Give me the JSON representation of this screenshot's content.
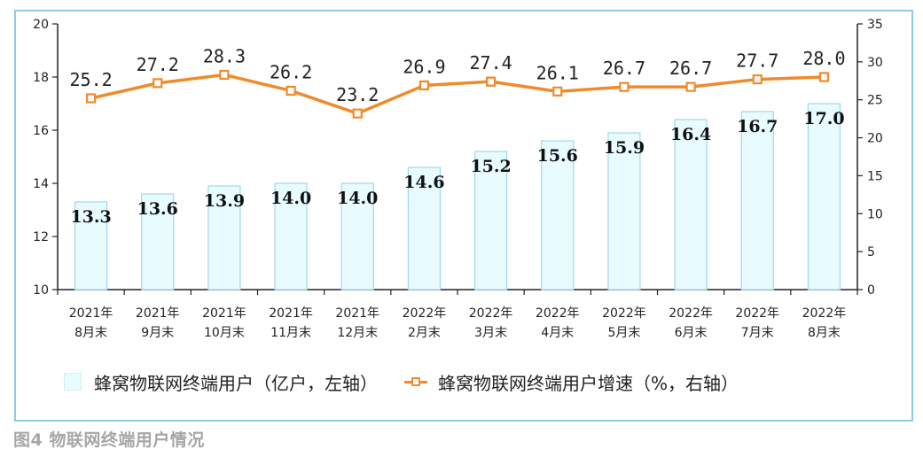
{
  "caption": "图4 物联网终端用户情况",
  "legend": {
    "bar_label": "蜂窝物联网终端用户（亿户，左轴）",
    "line_label": "蜂窝物联网终端用户增速（%，右轴）"
  },
  "colors": {
    "bar_fill": "#e8fbff",
    "bar_stroke": "#9fd8ea",
    "line": "#f08a2a",
    "frame": "#8ecbe6",
    "caption": "#a6a6a6"
  },
  "chart_data": {
    "type": "bar",
    "categories": [
      [
        "2021年",
        "8月末"
      ],
      [
        "2021年",
        "9月末"
      ],
      [
        "2021年",
        "10月末"
      ],
      [
        "2021年",
        "11月末"
      ],
      [
        "2021年",
        "12月末"
      ],
      [
        "2022年",
        "2月末"
      ],
      [
        "2022年",
        "3月末"
      ],
      [
        "2022年",
        "4月末"
      ],
      [
        "2022年",
        "5月末"
      ],
      [
        "2022年",
        "6月末"
      ],
      [
        "2022年",
        "7月末"
      ],
      [
        "2022年",
        "8月末"
      ]
    ],
    "series": [
      {
        "name": "蜂窝物联网终端用户（亿户，左轴）",
        "type": "bar",
        "axis": "left",
        "values": [
          13.3,
          13.6,
          13.9,
          14.0,
          14.0,
          14.6,
          15.2,
          15.6,
          15.9,
          16.4,
          16.7,
          17.0
        ],
        "labels": [
          "13.3",
          "13.6",
          "13.9",
          "14.0",
          "14.0",
          "14.6",
          "15.2",
          "15.6",
          "15.9",
          "16.4",
          "16.7",
          "17.0"
        ]
      },
      {
        "name": "蜂窝物联网终端用户增速（%，右轴）",
        "type": "line",
        "axis": "right",
        "values": [
          25.2,
          27.2,
          28.3,
          26.2,
          23.2,
          26.9,
          27.4,
          26.1,
          26.7,
          26.7,
          27.7,
          28.0
        ],
        "labels": [
          "25.2",
          "27.2",
          "28.3",
          "26.2",
          "23.2",
          "26.9",
          "27.4",
          "26.1",
          "26.7",
          "26.7",
          "27.7",
          "28.0"
        ]
      }
    ],
    "y_left": {
      "min": 10,
      "max": 20,
      "ticks": [
        "10",
        "12",
        "14",
        "16",
        "18",
        "20"
      ]
    },
    "y_right": {
      "min": 0,
      "max": 35,
      "ticks": [
        "0",
        "5",
        "10",
        "15",
        "20",
        "25",
        "30",
        "35"
      ]
    },
    "legend_position": "bottom",
    "grid": false
  }
}
